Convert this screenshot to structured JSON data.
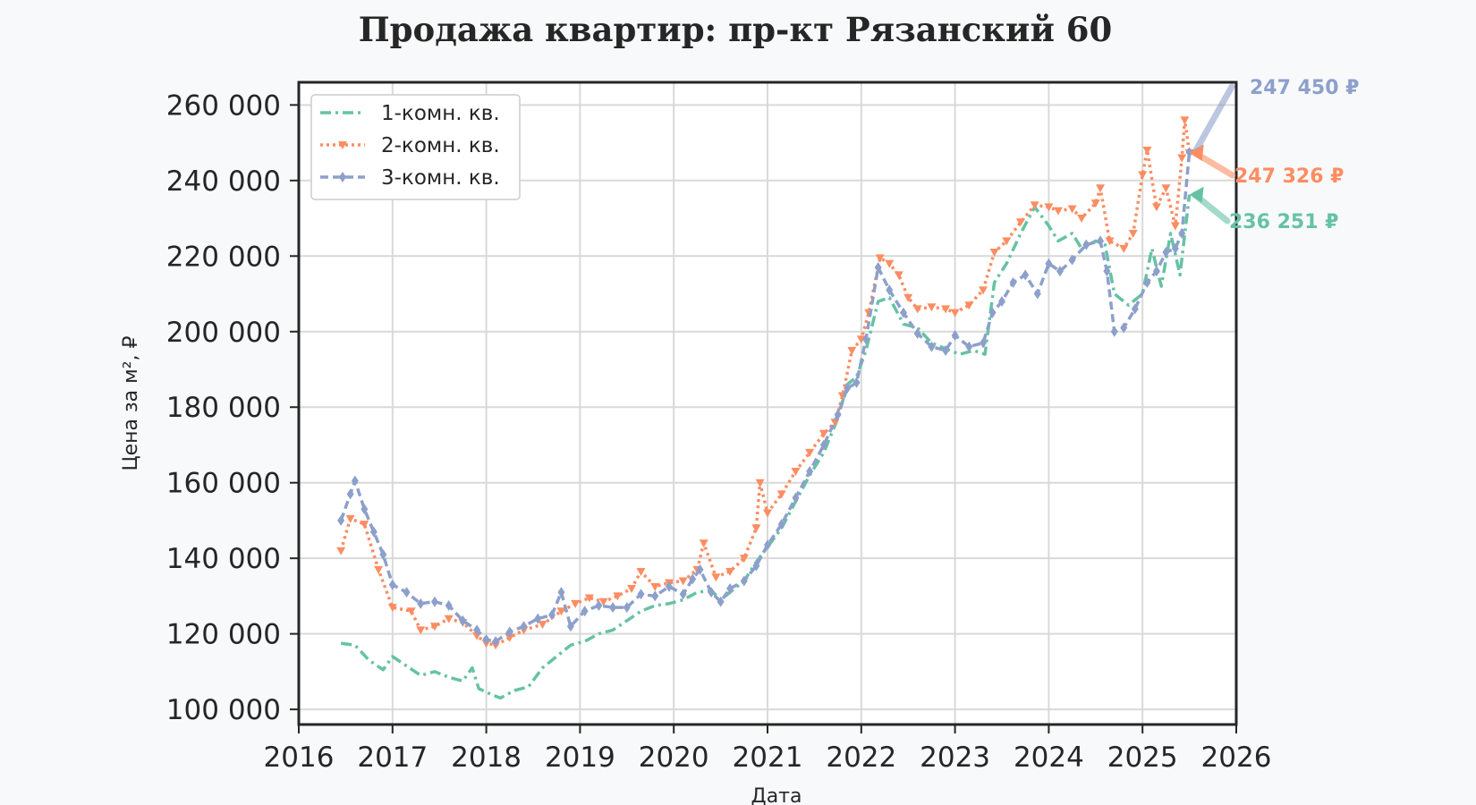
{
  "chart_data": {
    "type": "line",
    "title": "Продажа квартир: пр-кт Рязанский 60",
    "xlabel": "Дата",
    "ylabel": "Цена за м², ₽",
    "xlim": [
      2016,
      2026
    ],
    "ylim": [
      96000,
      266000
    ],
    "x_ticks": [
      "2016",
      "2017",
      "2018",
      "2019",
      "2020",
      "2021",
      "2022",
      "2023",
      "2024",
      "2025",
      "2026"
    ],
    "y_ticks": [
      "100 000",
      "120 000",
      "140 000",
      "160 000",
      "180 000",
      "200 000",
      "220 000",
      "240 000",
      "260 000"
    ],
    "grid": true,
    "legend_position": "top-left",
    "series": [
      {
        "name": "1-комн. кв.",
        "color": "#66c2a5",
        "line_style": "dash-dot",
        "marker": "none",
        "points": [
          [
            2016.45,
            117500
          ],
          [
            2016.6,
            117000
          ],
          [
            2016.75,
            113000
          ],
          [
            2016.9,
            110500
          ],
          [
            2017.0,
            114000
          ],
          [
            2017.15,
            111500
          ],
          [
            2017.3,
            109000
          ],
          [
            2017.45,
            110000
          ],
          [
            2017.6,
            108500
          ],
          [
            2017.75,
            107500
          ],
          [
            2017.85,
            111000
          ],
          [
            2017.92,
            105500
          ],
          [
            2018.05,
            104000
          ],
          [
            2018.15,
            103000
          ],
          [
            2018.3,
            105000
          ],
          [
            2018.45,
            106000
          ],
          [
            2018.6,
            111000
          ],
          [
            2018.75,
            114000
          ],
          [
            2018.9,
            117000
          ],
          [
            2019.05,
            118000
          ],
          [
            2019.2,
            120000
          ],
          [
            2019.35,
            121000
          ],
          [
            2019.5,
            123500
          ],
          [
            2019.65,
            126000
          ],
          [
            2019.8,
            127500
          ],
          [
            2019.95,
            128000
          ],
          [
            2020.1,
            129000
          ],
          [
            2020.25,
            131000
          ],
          [
            2020.4,
            131500
          ],
          [
            2020.5,
            129000
          ],
          [
            2020.6,
            131000
          ],
          [
            2020.75,
            134000
          ],
          [
            2020.88,
            139000
          ],
          [
            2021.0,
            143000
          ],
          [
            2021.15,
            148000
          ],
          [
            2021.3,
            155000
          ],
          [
            2021.45,
            162000
          ],
          [
            2021.6,
            168000
          ],
          [
            2021.75,
            177000
          ],
          [
            2021.85,
            186000
          ],
          [
            2021.95,
            188000
          ],
          [
            2022.05,
            195000
          ],
          [
            2022.18,
            208000
          ],
          [
            2022.3,
            209000
          ],
          [
            2022.45,
            202000
          ],
          [
            2022.6,
            201000
          ],
          [
            2022.75,
            197000
          ],
          [
            2022.9,
            195500
          ],
          [
            2023.05,
            194000
          ],
          [
            2023.2,
            195000
          ],
          [
            2023.32,
            194000
          ],
          [
            2023.42,
            213000
          ],
          [
            2023.55,
            218000
          ],
          [
            2023.7,
            226000
          ],
          [
            2023.85,
            233000
          ],
          [
            2024.0,
            228000
          ],
          [
            2024.1,
            224000
          ],
          [
            2024.25,
            226000
          ],
          [
            2024.35,
            222000
          ],
          [
            2024.5,
            224000
          ],
          [
            2024.6,
            223000
          ],
          [
            2024.7,
            210000
          ],
          [
            2024.85,
            207000
          ],
          [
            2025.0,
            210000
          ],
          [
            2025.1,
            222000
          ],
          [
            2025.2,
            212000
          ],
          [
            2025.3,
            226000
          ],
          [
            2025.4,
            215000
          ],
          [
            2025.5,
            236251
          ]
        ]
      },
      {
        "name": "2-комн. кв.",
        "color": "#fc8d62",
        "line_style": "dotted",
        "marker": "triangle-down",
        "points": [
          [
            2016.45,
            142000
          ],
          [
            2016.55,
            150500
          ],
          [
            2016.7,
            149000
          ],
          [
            2016.85,
            137000
          ],
          [
            2017.0,
            127000
          ],
          [
            2017.2,
            126000
          ],
          [
            2017.3,
            121000
          ],
          [
            2017.45,
            122000
          ],
          [
            2017.6,
            124000
          ],
          [
            2017.75,
            123000
          ],
          [
            2017.9,
            119500
          ],
          [
            2018.0,
            117500
          ],
          [
            2018.1,
            117000
          ],
          [
            2018.25,
            119000
          ],
          [
            2018.4,
            121000
          ],
          [
            2018.6,
            122500
          ],
          [
            2018.8,
            126000
          ],
          [
            2018.95,
            128000
          ],
          [
            2019.1,
            129500
          ],
          [
            2019.25,
            128500
          ],
          [
            2019.4,
            130000
          ],
          [
            2019.55,
            132000
          ],
          [
            2019.65,
            136500
          ],
          [
            2019.8,
            132500
          ],
          [
            2019.95,
            133500
          ],
          [
            2020.1,
            134000
          ],
          [
            2020.25,
            137000
          ],
          [
            2020.32,
            144000
          ],
          [
            2020.45,
            135000
          ],
          [
            2020.6,
            136500
          ],
          [
            2020.75,
            140000
          ],
          [
            2020.88,
            148000
          ],
          [
            2020.92,
            160000
          ],
          [
            2021.0,
            152000
          ],
          [
            2021.15,
            157000
          ],
          [
            2021.3,
            163000
          ],
          [
            2021.45,
            168000
          ],
          [
            2021.6,
            173000
          ],
          [
            2021.72,
            176000
          ],
          [
            2021.8,
            183000
          ],
          [
            2021.9,
            195000
          ],
          [
            2022.0,
            198000
          ],
          [
            2022.08,
            205000
          ],
          [
            2022.2,
            219500
          ],
          [
            2022.3,
            218000
          ],
          [
            2022.4,
            215000
          ],
          [
            2022.5,
            209000
          ],
          [
            2022.6,
            206000
          ],
          [
            2022.75,
            206500
          ],
          [
            2022.9,
            206000
          ],
          [
            2023.0,
            205000
          ],
          [
            2023.15,
            207000
          ],
          [
            2023.3,
            211000
          ],
          [
            2023.42,
            221000
          ],
          [
            2023.55,
            224000
          ],
          [
            2023.7,
            229000
          ],
          [
            2023.85,
            233500
          ],
          [
            2024.0,
            233000
          ],
          [
            2024.1,
            232000
          ],
          [
            2024.25,
            232500
          ],
          [
            2024.35,
            230000
          ],
          [
            2024.5,
            234000
          ],
          [
            2024.55,
            238000
          ],
          [
            2024.65,
            224000
          ],
          [
            2024.8,
            222000
          ],
          [
            2024.9,
            226000
          ],
          [
            2025.0,
            241500
          ],
          [
            2025.05,
            248000
          ],
          [
            2025.15,
            233000
          ],
          [
            2025.25,
            238000
          ],
          [
            2025.35,
            228000
          ],
          [
            2025.42,
            246000
          ],
          [
            2025.45,
            256000
          ],
          [
            2025.5,
            247326
          ]
        ]
      },
      {
        "name": "3-комн. кв.",
        "color": "#8da0cb",
        "line_style": "dashed",
        "marker": "diamond",
        "points": [
          [
            2016.45,
            150000
          ],
          [
            2016.55,
            157000
          ],
          [
            2016.6,
            160500
          ],
          [
            2016.7,
            153000
          ],
          [
            2016.8,
            147000
          ],
          [
            2016.9,
            141000
          ],
          [
            2017.0,
            133000
          ],
          [
            2017.15,
            131000
          ],
          [
            2017.3,
            128000
          ],
          [
            2017.45,
            128500
          ],
          [
            2017.6,
            127500
          ],
          [
            2017.75,
            123500
          ],
          [
            2017.9,
            121000
          ],
          [
            2018.0,
            118500
          ],
          [
            2018.1,
            118000
          ],
          [
            2018.25,
            120500
          ],
          [
            2018.4,
            122000
          ],
          [
            2018.55,
            124000
          ],
          [
            2018.7,
            125000
          ],
          [
            2018.8,
            131000
          ],
          [
            2018.9,
            122000
          ],
          [
            2019.05,
            126000
          ],
          [
            2019.2,
            127500
          ],
          [
            2019.35,
            127000
          ],
          [
            2019.5,
            127000
          ],
          [
            2019.65,
            130500
          ],
          [
            2019.8,
            130000
          ],
          [
            2019.95,
            132500
          ],
          [
            2020.1,
            130500
          ],
          [
            2020.2,
            134500
          ],
          [
            2020.28,
            137000
          ],
          [
            2020.4,
            131000
          ],
          [
            2020.5,
            128500
          ],
          [
            2020.6,
            132000
          ],
          [
            2020.75,
            134000
          ],
          [
            2020.88,
            138000
          ],
          [
            2021.0,
            143500
          ],
          [
            2021.15,
            149000
          ],
          [
            2021.3,
            156000
          ],
          [
            2021.45,
            163000
          ],
          [
            2021.6,
            170000
          ],
          [
            2021.75,
            178000
          ],
          [
            2021.85,
            185000
          ],
          [
            2021.95,
            186500
          ],
          [
            2022.05,
            198000
          ],
          [
            2022.18,
            217000
          ],
          [
            2022.3,
            211000
          ],
          [
            2022.45,
            205000
          ],
          [
            2022.6,
            199500
          ],
          [
            2022.75,
            196000
          ],
          [
            2022.9,
            195000
          ],
          [
            2023.0,
            199000
          ],
          [
            2023.15,
            196000
          ],
          [
            2023.3,
            197000
          ],
          [
            2023.4,
            205000
          ],
          [
            2023.5,
            208000
          ],
          [
            2023.62,
            213000
          ],
          [
            2023.75,
            215000
          ],
          [
            2023.88,
            210000
          ],
          [
            2024.0,
            218000
          ],
          [
            2024.12,
            216000
          ],
          [
            2024.25,
            219000
          ],
          [
            2024.4,
            223000
          ],
          [
            2024.55,
            224000
          ],
          [
            2024.62,
            216000
          ],
          [
            2024.7,
            200000
          ],
          [
            2024.8,
            201000
          ],
          [
            2024.92,
            206000
          ],
          [
            2025.05,
            213000
          ],
          [
            2025.15,
            216000
          ],
          [
            2025.25,
            221000
          ],
          [
            2025.35,
            222000
          ],
          [
            2025.42,
            226000
          ],
          [
            2025.5,
            247450
          ]
        ]
      }
    ],
    "annotations": [
      {
        "text": "247 450 ₽",
        "series": "3-комн. кв.",
        "x": 2025.5,
        "y": 247450
      },
      {
        "text": "247 326 ₽",
        "series": "2-комн. кв.",
        "x": 2025.5,
        "y": 247326
      },
      {
        "text": "236 251 ₽",
        "series": "1-комн. кв.",
        "x": 2025.5,
        "y": 236251
      }
    ]
  }
}
